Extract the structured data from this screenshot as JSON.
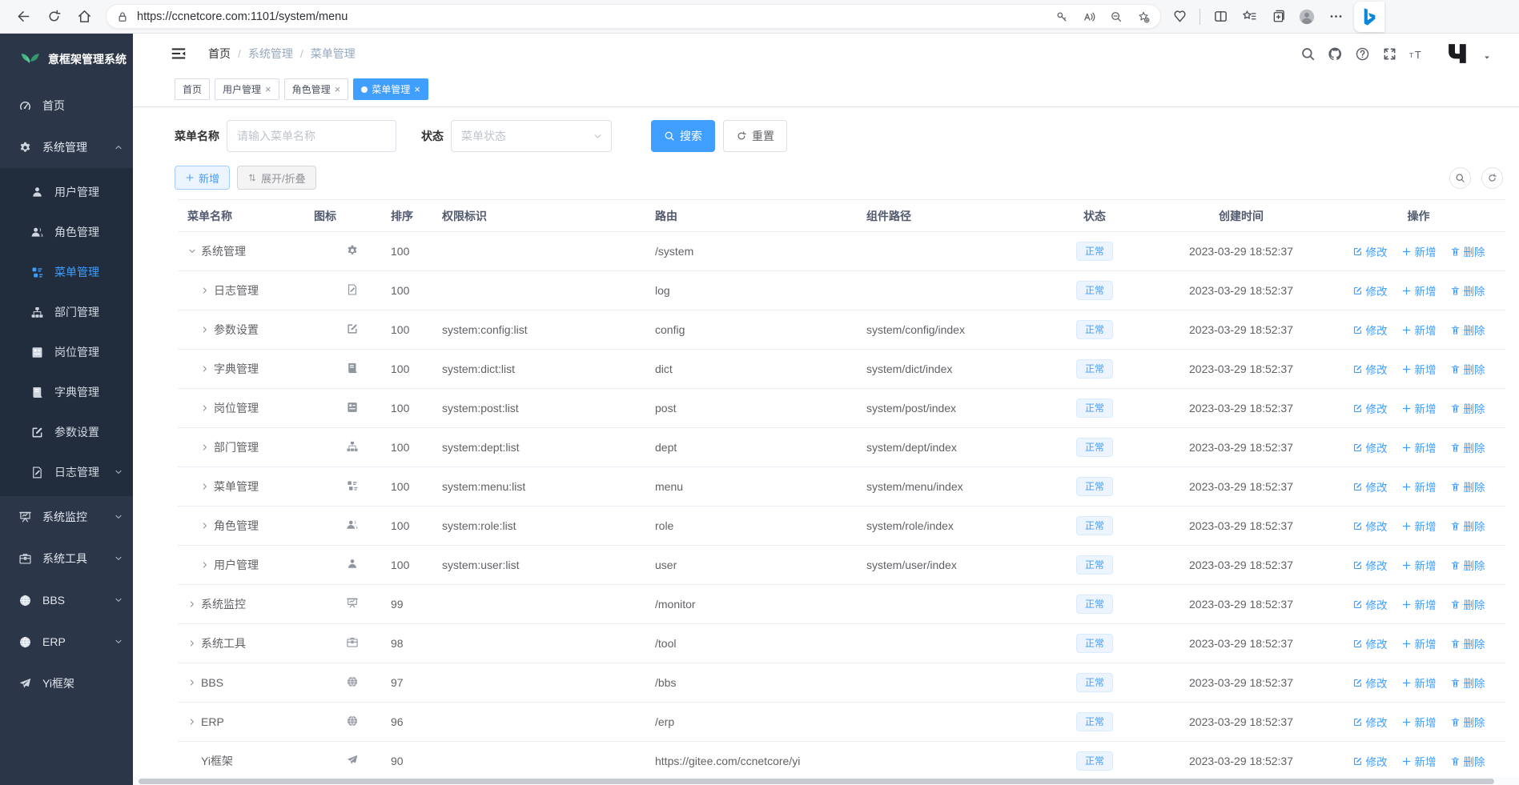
{
  "browser": {
    "url": "https://ccnetcore.com:1101/system/menu",
    "left_icons": [
      "back-icon",
      "refresh-icon",
      "home-icon"
    ],
    "pill_left_icon": "lock-icon",
    "pill_right_icons": [
      "key-icon",
      "read-aloud-icon",
      "zoom-out-icon",
      "favorite-add-icon"
    ],
    "right_icons": [
      "essentials-icon",
      "divider",
      "split-screen-icon",
      "favorites-bar-icon",
      "collections-icon",
      "profile-avatar",
      "more-icon"
    ],
    "bing_icon": "bing-icon"
  },
  "sidebar": {
    "logo_icon": "leaf-logo",
    "logo_title": "意框架管理系统",
    "items": [
      {
        "label": "首页",
        "icon": "dashboard-icon"
      },
      {
        "label": "系统管理",
        "icon": "gear-icon",
        "chevron": "up",
        "expanded": true,
        "children": [
          {
            "label": "用户管理",
            "icon": "user-icon"
          },
          {
            "label": "角色管理",
            "icon": "users-icon"
          },
          {
            "label": "菜单管理",
            "icon": "menu-icon",
            "active": true
          },
          {
            "label": "部门管理",
            "icon": "tree-icon"
          },
          {
            "label": "岗位管理",
            "icon": "badge-icon"
          },
          {
            "label": "字典管理",
            "icon": "book-icon"
          },
          {
            "label": "参数设置",
            "icon": "edit-icon"
          },
          {
            "label": "日志管理",
            "icon": "log-icon",
            "chevron": "down"
          }
        ]
      },
      {
        "label": "系统监控",
        "icon": "monitor-icon",
        "chevron": "down"
      },
      {
        "label": "系统工具",
        "icon": "briefcase-icon",
        "chevron": "down"
      },
      {
        "label": "BBS",
        "icon": "globe-icon",
        "chevron": "down"
      },
      {
        "label": "ERP",
        "icon": "globe-icon",
        "chevron": "down"
      },
      {
        "label": "Yi框架",
        "icon": "plane-icon"
      }
    ]
  },
  "header": {
    "breadcrumb": [
      "首页",
      "系统管理",
      "菜单管理"
    ],
    "separator": "/",
    "action_icons": [
      "search-icon",
      "github-icon",
      "help-icon",
      "fullscreen-icon",
      "font-size-icon"
    ],
    "logo_icon": "yi-logo"
  },
  "tabs": [
    {
      "label": "首页",
      "closable": false,
      "active": false
    },
    {
      "label": "用户管理",
      "closable": true,
      "active": false
    },
    {
      "label": "角色管理",
      "closable": true,
      "active": false
    },
    {
      "label": "菜单管理",
      "closable": true,
      "active": true
    }
  ],
  "tab_close_glyph": "×",
  "filter": {
    "name_label": "菜单名称",
    "name_placeholder": "请输入菜单名称",
    "name_value": "",
    "status_label": "状态",
    "status_placeholder": "菜单状态",
    "search_label": "搜索",
    "reset_label": "重置"
  },
  "toolbar": {
    "add_label": "新增",
    "toggle_label": "展开/折叠"
  },
  "table": {
    "columns": [
      "菜单名称",
      "图标",
      "排序",
      "权限标识",
      "路由",
      "组件路径",
      "状态",
      "创建时间",
      "操作"
    ],
    "status_normal": "正常",
    "created_time": "2023-03-29 18:52:37",
    "actions": {
      "edit": "修改",
      "add": "新增",
      "delete": "删除"
    },
    "rows": [
      {
        "name": "系统管理",
        "icon": "gear-icon",
        "expand": "down",
        "level": 0,
        "order": "100",
        "perm": "",
        "route": "/system",
        "component": ""
      },
      {
        "name": "日志管理",
        "icon": "log-icon",
        "expand": "right",
        "level": 1,
        "order": "100",
        "perm": "",
        "route": "log",
        "component": ""
      },
      {
        "name": "参数设置",
        "icon": "edit-icon",
        "expand": "right",
        "level": 1,
        "order": "100",
        "perm": "system:config:list",
        "route": "config",
        "component": "system/config/index"
      },
      {
        "name": "字典管理",
        "icon": "book-icon",
        "expand": "right",
        "level": 1,
        "order": "100",
        "perm": "system:dict:list",
        "route": "dict",
        "component": "system/dict/index"
      },
      {
        "name": "岗位管理",
        "icon": "badge-icon",
        "expand": "right",
        "level": 1,
        "order": "100",
        "perm": "system:post:list",
        "route": "post",
        "component": "system/post/index"
      },
      {
        "name": "部门管理",
        "icon": "tree-icon",
        "expand": "right",
        "level": 1,
        "order": "100",
        "perm": "system:dept:list",
        "route": "dept",
        "component": "system/dept/index"
      },
      {
        "name": "菜单管理",
        "icon": "menu-icon",
        "expand": "right",
        "level": 1,
        "order": "100",
        "perm": "system:menu:list",
        "route": "menu",
        "component": "system/menu/index"
      },
      {
        "name": "角色管理",
        "icon": "users-icon",
        "expand": "right",
        "level": 1,
        "order": "100",
        "perm": "system:role:list",
        "route": "role",
        "component": "system/role/index"
      },
      {
        "name": "用户管理",
        "icon": "user-icon",
        "expand": "right",
        "level": 1,
        "order": "100",
        "perm": "system:user:list",
        "route": "user",
        "component": "system/user/index"
      },
      {
        "name": "系统监控",
        "icon": "monitor-icon",
        "expand": "right",
        "level": 0,
        "order": "99",
        "perm": "",
        "route": "/monitor",
        "component": ""
      },
      {
        "name": "系统工具",
        "icon": "briefcase-icon",
        "expand": "right",
        "level": 0,
        "order": "98",
        "perm": "",
        "route": "/tool",
        "component": ""
      },
      {
        "name": "BBS",
        "icon": "globe-icon",
        "expand": "right",
        "level": 0,
        "order": "97",
        "perm": "",
        "route": "/bbs",
        "component": ""
      },
      {
        "name": "ERP",
        "icon": "globe-icon",
        "expand": "right",
        "level": 0,
        "order": "96",
        "perm": "",
        "route": "/erp",
        "component": ""
      },
      {
        "name": "Yi框架",
        "icon": "plane-icon",
        "expand": "none",
        "level": 0,
        "order": "90",
        "perm": "",
        "route": "https://gitee.com/ccnetcore/yi",
        "component": ""
      }
    ]
  },
  "colors": {
    "accent": "#409eff",
    "sidebar_bg": "#2b3648",
    "submenu_bg": "#212c3d",
    "status_bg": "#ecf5ff"
  }
}
